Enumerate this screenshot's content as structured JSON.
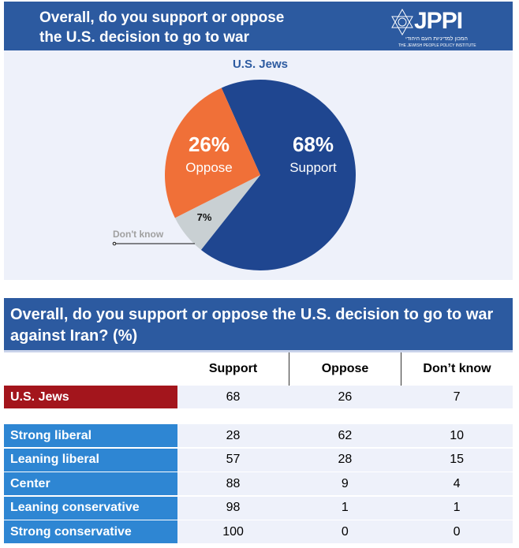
{
  "header": {
    "question": "Overall, do you support or oppose the U.S. decision to go to war against Iran?",
    "logo": {
      "name": "JPPI",
      "hebrew": "המכון למדיניות העם היהודי",
      "english": "THE JEWISH PEOPLE POLICY INSTITUTE"
    }
  },
  "chart_data": {
    "type": "pie",
    "title": "U.S. Jews",
    "slices": [
      {
        "label": "Support",
        "value": 68,
        "display": "68%",
        "color": "#1f4690"
      },
      {
        "label": "Don't know",
        "value": 7,
        "display": "7%",
        "color": "#c9d0d3"
      },
      {
        "label": "Oppose",
        "value": 26,
        "display": "26%",
        "color": "#f07038"
      }
    ]
  },
  "table": {
    "title": "Overall, do you support or oppose the U.S. decision to go to war against Iran? (%)",
    "columns": [
      "Support",
      "Oppose",
      "Don’t know"
    ],
    "total": {
      "label": "U.S. Jews",
      "values": [
        "68",
        "26",
        "7"
      ]
    },
    "rows": [
      {
        "label": "Strong liberal",
        "values": [
          "28",
          "62",
          "10"
        ]
      },
      {
        "label": "Leaning liberal",
        "values": [
          "57",
          "28",
          "15"
        ]
      },
      {
        "label": "Center",
        "values": [
          "88",
          "9",
          "4"
        ]
      },
      {
        "label": "Leaning conservative",
        "values": [
          "98",
          "1",
          "1"
        ]
      },
      {
        "label": "Strong conservative",
        "values": [
          "100",
          "0",
          "0"
        ]
      }
    ]
  }
}
